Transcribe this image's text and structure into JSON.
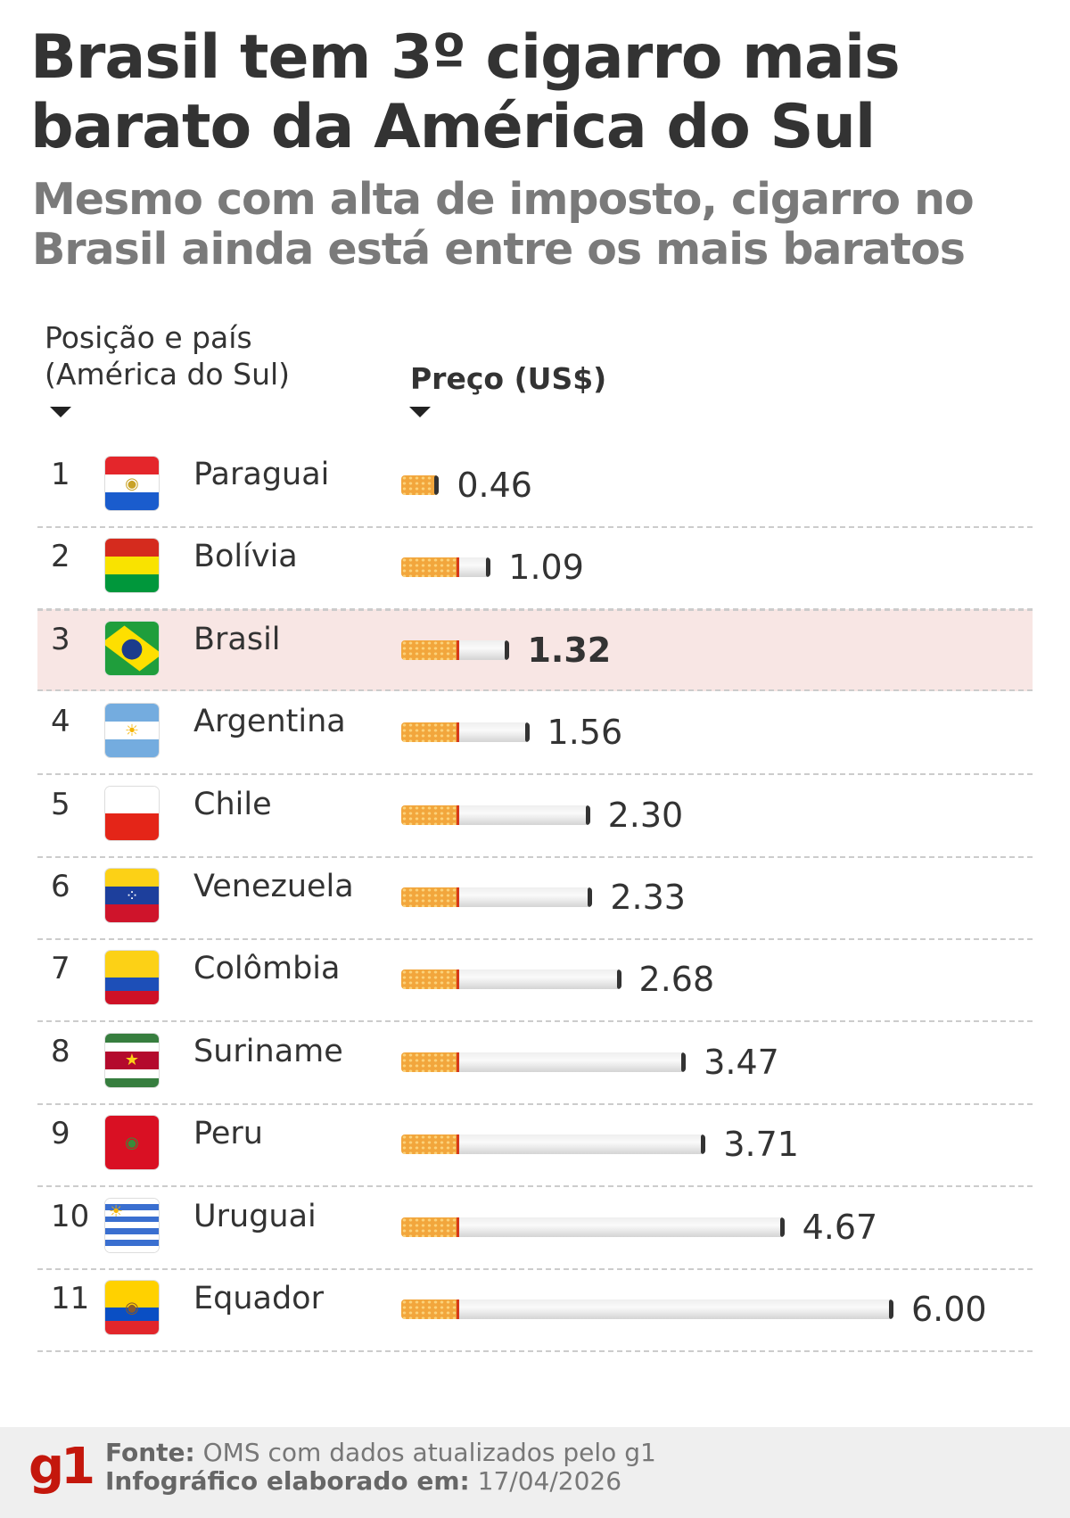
{
  "title": "Brasil tem 3º cigarro mais barato da América do Sul",
  "subtitle": "Mesmo com alta de imposto, cigarro no Brasil ainda está entre os mais baratos",
  "headers": {
    "country": "Posição e país (América do Sul)",
    "price": "Preço (US$)"
  },
  "highlight_color": "#f8e6e4",
  "chart_data": {
    "type": "bar",
    "orientation": "horizontal",
    "title": "Brasil tem 3º cigarro mais barato da América do Sul",
    "ylabel": "Posição e país (América do Sul)",
    "xlabel": "Preço (US$)",
    "highlight": "Brasil",
    "ranks": [
      "1",
      "2",
      "3",
      "4",
      "5",
      "6",
      "7",
      "8",
      "9",
      "10",
      "11"
    ],
    "categories": [
      "Paraguai",
      "Bolívia",
      "Brasil",
      "Argentina",
      "Chile",
      "Venezuela",
      "Colômbia",
      "Suriname",
      "Peru",
      "Uruguai",
      "Equador"
    ],
    "values": [
      0.46,
      1.09,
      1.32,
      1.56,
      2.3,
      2.33,
      2.68,
      3.47,
      3.71,
      4.67,
      6.0
    ],
    "labels": [
      "0.46",
      "1.09",
      "1.32",
      "1.56",
      "2.30",
      "2.33",
      "2.68",
      "3.47",
      "3.71",
      "4.67",
      "6.00"
    ]
  },
  "flags": [
    {
      "stripes": [
        "#e4262b",
        "#ffffff",
        "#1a5ccd"
      ],
      "mark": "paraguay-emblem-icon"
    },
    {
      "stripes": [
        "#d52b1e",
        "#f9e300",
        "#00973b"
      ]
    },
    {
      "stripes": [
        "#1f9e3c"
      ],
      "mark": "brazil-globe-icon"
    },
    {
      "stripes": [
        "#74acdf",
        "#ffffff",
        "#74acdf"
      ],
      "mark": "sun-icon"
    },
    {
      "stripes": [
        "#ffffff",
        "#e42518"
      ],
      "mark": "star-icon"
    },
    {
      "stripes": [
        "#fcd116",
        "#1d3f9c",
        "#cf142b"
      ],
      "mark": "stars-arc-icon"
    },
    {
      "stripes": [
        "#fcd116",
        "#fcd116",
        "#1d4fb8",
        "#ce1126"
      ]
    },
    {
      "stripes": [
        "#377e3f",
        "#ffffff",
        "#b40a2d",
        "#b40a2d",
        "#ffffff",
        "#377e3f"
      ],
      "mark": "star-icon"
    },
    {
      "stripes": [
        "#d91023"
      ],
      "mark": "peru-emblem-icon"
    },
    {
      "stripes": [
        "#ffffff",
        "#3a6fd0",
        "#ffffff",
        "#3a6fd0",
        "#ffffff",
        "#3a6fd0",
        "#ffffff",
        "#3a6fd0",
        "#ffffff"
      ],
      "mark": "sun-icon"
    },
    {
      "stripes": [
        "#ffd100",
        "#ffd100",
        "#0a4fc4",
        "#e2262b"
      ],
      "mark": "ecuador-emblem-icon"
    }
  ],
  "footer": {
    "logo": "g1",
    "source_label": "Fonte:",
    "source": "OMS com dados atualizados pelo g1",
    "date_label": "Infográfico elaborado em:",
    "date": "17/04/2026"
  }
}
